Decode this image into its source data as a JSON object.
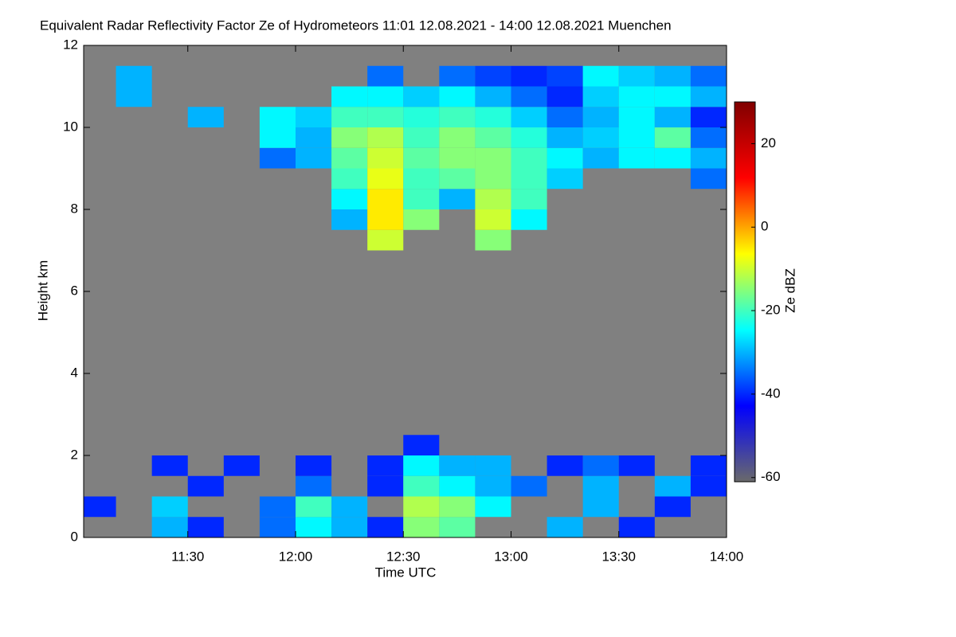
{
  "chart_data": {
    "type": "heatmap",
    "title": "Equivalent Radar Reflectivity Factor Ze of Hydrometeors   11:01 12.08.2021 - 14:00 12.08.2021 Muenchen",
    "xlabel": "Time UTC",
    "ylabel": "Height km",
    "colorbar_label": "Ze dBZ",
    "xlim": [
      661,
      840
    ],
    "xticks": [
      {
        "value": 690,
        "label": "11:30"
      },
      {
        "value": 720,
        "label": "12:00"
      },
      {
        "value": 750,
        "label": "12:30"
      },
      {
        "value": 780,
        "label": "13:00"
      },
      {
        "value": 810,
        "label": "13:30"
      },
      {
        "value": 840,
        "label": "14:00"
      }
    ],
    "ylim": [
      0,
      12
    ],
    "yticks": [
      0,
      2,
      4,
      6,
      8,
      10,
      12
    ],
    "zlim": [
      -61,
      30
    ],
    "zticks": [
      -60,
      -40,
      -20,
      0,
      20
    ],
    "colormap": [
      "#6a6a6a",
      "#0000ff",
      "#00ffff",
      "#ffff00",
      "#ff0000",
      "#800000"
    ],
    "background": "#808080",
    "xbins": [
      660,
      670,
      680,
      690,
      700,
      710,
      720,
      730,
      740,
      750,
      760,
      770,
      780,
      790,
      800,
      810,
      820,
      830,
      840
    ],
    "ybins": [
      0,
      0.5,
      1,
      1.5,
      2,
      2.5,
      3,
      3.5,
      4,
      4.5,
      5,
      5.5,
      6,
      6.5,
      7,
      7.5,
      8,
      8.5,
      9,
      9.5,
      10,
      10.5,
      11,
      11.5,
      12
    ],
    "z": [
      [
        null,
        null,
        -30,
        -40,
        null,
        -35,
        -25,
        -30,
        -40,
        -15,
        -18,
        null,
        null,
        -30,
        null,
        -40,
        null,
        null
      ],
      [
        -40,
        null,
        -28,
        null,
        null,
        -35,
        -20,
        -30,
        null,
        -12,
        -15,
        -25,
        null,
        null,
        -30,
        null,
        -40,
        null
      ],
      [
        null,
        null,
        null,
        -40,
        null,
        null,
        -35,
        null,
        -40,
        -20,
        -25,
        -30,
        -35,
        null,
        -30,
        null,
        -30,
        -40
      ],
      [
        null,
        null,
        -40,
        null,
        -40,
        null,
        -40,
        null,
        -40,
        -25,
        -30,
        -30,
        null,
        -40,
        -35,
        -40,
        null,
        -40
      ],
      [
        null,
        null,
        null,
        null,
        null,
        null,
        null,
        null,
        null,
        -40,
        null,
        null,
        null,
        null,
        null,
        null,
        null,
        null
      ],
      [
        null,
        null,
        null,
        null,
        null,
        null,
        null,
        null,
        null,
        null,
        null,
        null,
        null,
        null,
        null,
        null,
        null,
        null
      ],
      [
        null,
        null,
        null,
        null,
        null,
        null,
        null,
        null,
        null,
        null,
        null,
        null,
        null,
        null,
        null,
        null,
        null,
        null
      ],
      [
        null,
        null,
        null,
        null,
        null,
        null,
        null,
        null,
        null,
        null,
        null,
        null,
        null,
        null,
        null,
        null,
        null,
        null
      ],
      [
        null,
        null,
        null,
        null,
        null,
        null,
        null,
        null,
        null,
        null,
        null,
        null,
        null,
        null,
        null,
        null,
        null,
        null
      ],
      [
        null,
        null,
        null,
        null,
        null,
        null,
        null,
        null,
        null,
        null,
        null,
        null,
        null,
        null,
        null,
        null,
        null,
        null
      ],
      [
        null,
        null,
        null,
        null,
        null,
        null,
        null,
        null,
        null,
        null,
        null,
        null,
        null,
        null,
        null,
        null,
        null,
        null
      ],
      [
        null,
        null,
        null,
        null,
        null,
        null,
        null,
        null,
        null,
        null,
        null,
        null,
        null,
        null,
        null,
        null,
        null,
        null
      ],
      [
        null,
        null,
        null,
        null,
        null,
        null,
        null,
        null,
        null,
        null,
        null,
        null,
        null,
        null,
        null,
        null,
        null,
        null
      ],
      [
        null,
        null,
        null,
        null,
        null,
        null,
        null,
        null,
        null,
        null,
        null,
        null,
        null,
        null,
        null,
        null,
        null,
        null
      ],
      [
        null,
        null,
        null,
        null,
        null,
        null,
        null,
        null,
        -10,
        null,
        null,
        -15,
        null,
        null,
        null,
        null,
        null,
        null
      ],
      [
        null,
        null,
        null,
        null,
        null,
        null,
        null,
        -30,
        -5,
        -15,
        null,
        -10,
        -25,
        null,
        null,
        null,
        null,
        null
      ],
      [
        null,
        null,
        null,
        null,
        null,
        null,
        null,
        -25,
        -5,
        -20,
        -30,
        -12,
        -20,
        null,
        null,
        null,
        null,
        null
      ],
      [
        null,
        null,
        null,
        null,
        null,
        null,
        null,
        -20,
        -8,
        -20,
        -18,
        -15,
        -20,
        -28,
        null,
        null,
        null,
        -35
      ],
      [
        null,
        null,
        null,
        null,
        null,
        -35,
        -30,
        -18,
        -10,
        -18,
        -15,
        -15,
        -20,
        -25,
        -30,
        -25,
        -25,
        -30
      ],
      [
        null,
        null,
        null,
        null,
        null,
        -25,
        -30,
        -15,
        -12,
        -20,
        -15,
        -18,
        -22,
        -30,
        -28,
        -25,
        -18,
        -35
      ],
      [
        null,
        null,
        null,
        -30,
        null,
        -25,
        -28,
        -20,
        -20,
        -22,
        -20,
        -22,
        -28,
        -35,
        -30,
        -25,
        -30,
        -40
      ],
      [
        null,
        -30,
        null,
        null,
        null,
        null,
        null,
        -25,
        -25,
        -28,
        -25,
        -30,
        -35,
        -40,
        -28,
        -25,
        -25,
        -30
      ],
      [
        null,
        -30,
        null,
        null,
        null,
        null,
        null,
        null,
        -35,
        null,
        -35,
        -38,
        -40,
        -38,
        -25,
        -28,
        -30,
        -35
      ],
      [
        null,
        null,
        null,
        null,
        null,
        null,
        null,
        null,
        null,
        null,
        null,
        null,
        null,
        null,
        null,
        null,
        null,
        null
      ]
    ]
  }
}
